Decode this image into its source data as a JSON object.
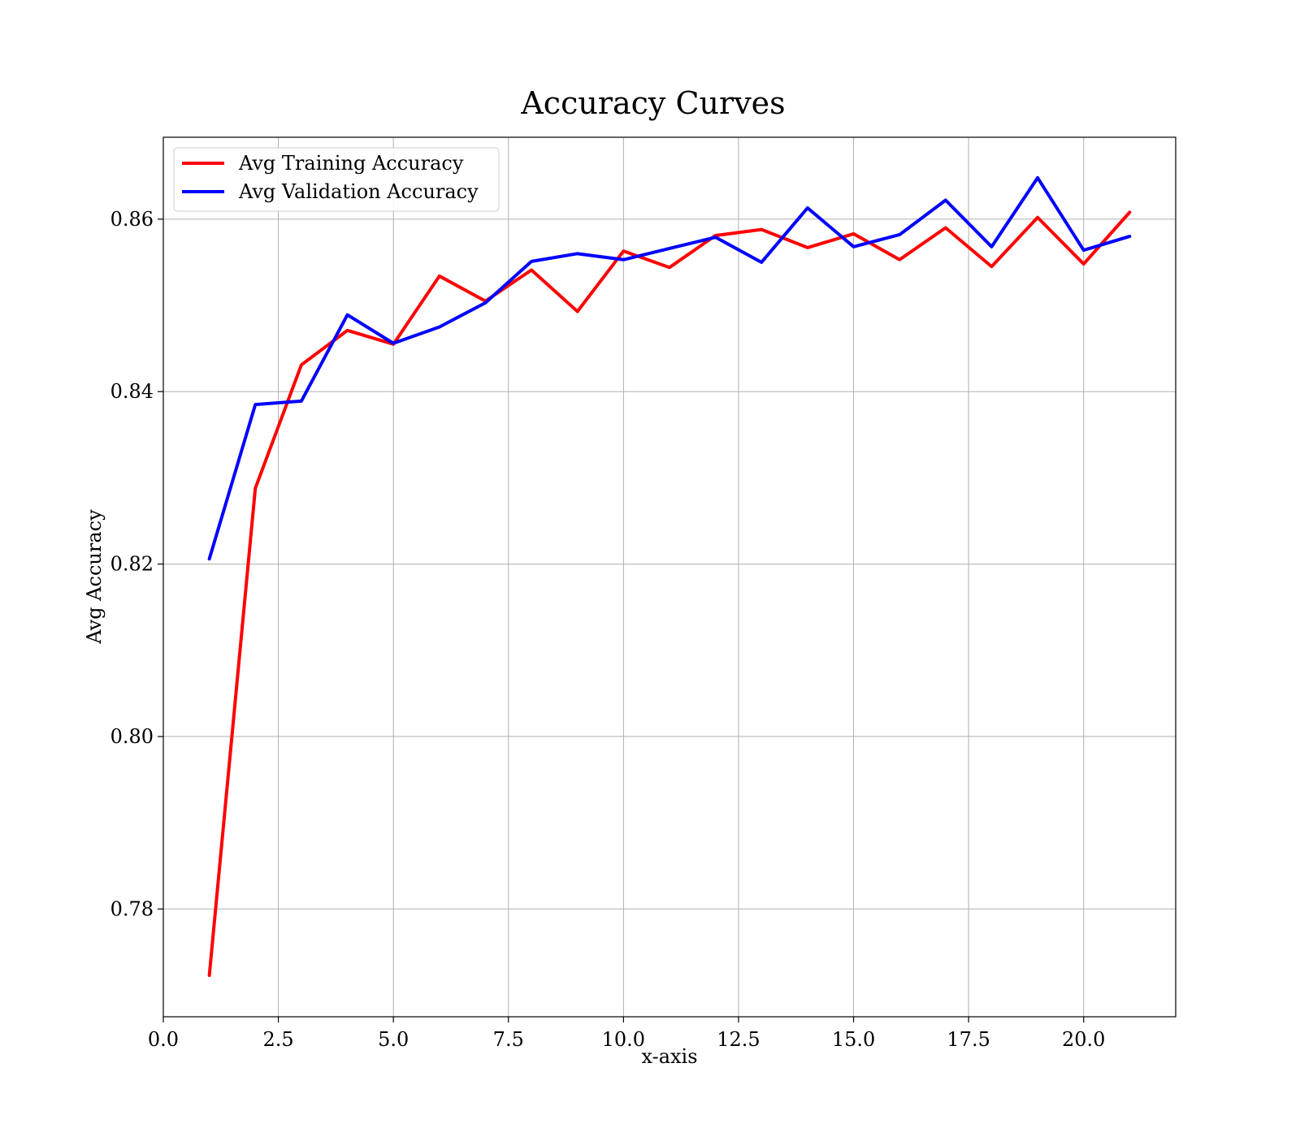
{
  "chart_data": {
    "type": "line",
    "title": "Accuracy Curves",
    "xlabel": "x-axis",
    "ylabel": "Avg Accuracy",
    "xlim": [
      0.0,
      22.0
    ],
    "ylim": [
      0.7675,
      0.8695
    ],
    "xticks": [
      "0.0",
      "2.5",
      "5.0",
      "7.5",
      "10.0",
      "12.5",
      "15.0",
      "17.5",
      "20.0"
    ],
    "yticks": [
      "0.78",
      "0.80",
      "0.82",
      "0.84",
      "0.86"
    ],
    "grid": true,
    "legend_position": "top-left",
    "x": [
      1,
      2,
      3,
      4,
      5,
      6,
      7,
      8,
      9,
      10,
      11,
      12,
      13,
      14,
      15,
      16,
      17,
      18,
      19,
      20,
      21
    ],
    "series": [
      {
        "name": "Avg Training Accuracy",
        "color": "#ff0000",
        "values": [
          0.7723,
          0.8288,
          0.8431,
          0.8471,
          0.8455,
          0.8534,
          0.8505,
          0.8541,
          0.8493,
          0.8563,
          0.8544,
          0.8581,
          0.8588,
          0.8567,
          0.8583,
          0.8553,
          0.859,
          0.8545,
          0.8602,
          0.8548,
          0.8608
        ]
      },
      {
        "name": "Avg Validation Accuracy",
        "color": "#0000ff",
        "values": [
          0.8206,
          0.8385,
          0.8389,
          0.8489,
          0.8456,
          0.8475,
          0.8503,
          0.8551,
          0.856,
          0.8553,
          0.8566,
          0.8579,
          0.855,
          0.8613,
          0.8568,
          0.8582,
          0.8622,
          0.8568,
          0.8648,
          0.8564,
          0.858
        ]
      }
    ]
  }
}
